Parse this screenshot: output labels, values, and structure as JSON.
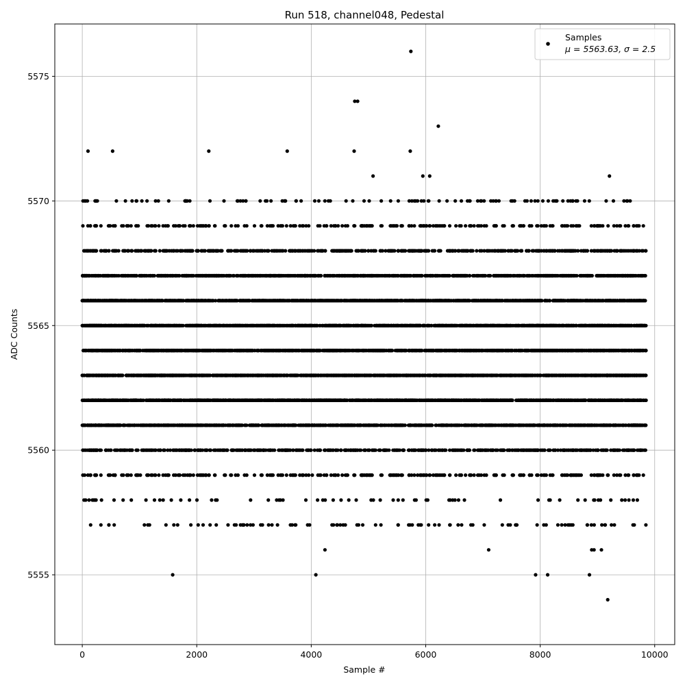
{
  "chart_data": {
    "type": "scatter",
    "title": "Run 518, channel048, Pedestal",
    "xlabel": "Sample #",
    "ylabel": "ADC Counts",
    "xlim": [
      -480,
      10350
    ],
    "ylim": [
      5552.2,
      5577.1
    ],
    "xticks": [
      0,
      2000,
      4000,
      6000,
      8000,
      10000
    ],
    "yticks": [
      5555,
      5560,
      5565,
      5570,
      5575
    ],
    "grid": true,
    "marker_color": "#000000",
    "legend": {
      "placement": "top-right",
      "label": "Samples",
      "stats": "μ = 5563.63, σ = 2.5"
    },
    "x_extent_note_values": [
      0,
      9850
    ],
    "outliers": [
      {
        "x": 100,
        "y": 5572
      },
      {
        "x": 530,
        "y": 5572
      },
      {
        "x": 2210,
        "y": 5572
      },
      {
        "x": 3580,
        "y": 5572
      },
      {
        "x": 4750,
        "y": 5572
      },
      {
        "x": 5730,
        "y": 5572
      },
      {
        "x": 4760,
        "y": 5574
      },
      {
        "x": 4810,
        "y": 5574
      },
      {
        "x": 5740,
        "y": 5576
      },
      {
        "x": 6220,
        "y": 5573
      },
      {
        "x": 5080,
        "y": 5571
      },
      {
        "x": 5950,
        "y": 5571
      },
      {
        "x": 6070,
        "y": 5571
      },
      {
        "x": 9210,
        "y": 5571
      },
      {
        "x": 1580,
        "y": 5555
      },
      {
        "x": 4080,
        "y": 5555
      },
      {
        "x": 7920,
        "y": 5555
      },
      {
        "x": 8130,
        "y": 5555
      },
      {
        "x": 8860,
        "y": 5555
      },
      {
        "x": 9180,
        "y": 5554
      },
      {
        "x": 4240,
        "y": 5556
      },
      {
        "x": 7100,
        "y": 5556
      },
      {
        "x": 8900,
        "y": 5556
      },
      {
        "x": 8940,
        "y": 5556
      },
      {
        "x": 9070,
        "y": 5556
      }
    ],
    "levels": [
      {
        "y": 5570,
        "count": 110
      },
      {
        "y": 5569,
        "count": 230
      },
      {
        "y": 5568,
        "count": 520
      },
      {
        "y": 5567,
        "count": 1050
      },
      {
        "y": 5566,
        "count": 1350
      },
      {
        "y": 5565,
        "count": 1500
      },
      {
        "y": 5564,
        "count": 1500
      },
      {
        "y": 5563,
        "count": 1450
      },
      {
        "y": 5562,
        "count": 1300
      },
      {
        "y": 5561,
        "count": 1000
      },
      {
        "y": 5560,
        "count": 560
      },
      {
        "y": 5559,
        "count": 260
      },
      {
        "y": 5558,
        "count": 70
      },
      {
        "y": 5557,
        "count": 95
      }
    ]
  }
}
